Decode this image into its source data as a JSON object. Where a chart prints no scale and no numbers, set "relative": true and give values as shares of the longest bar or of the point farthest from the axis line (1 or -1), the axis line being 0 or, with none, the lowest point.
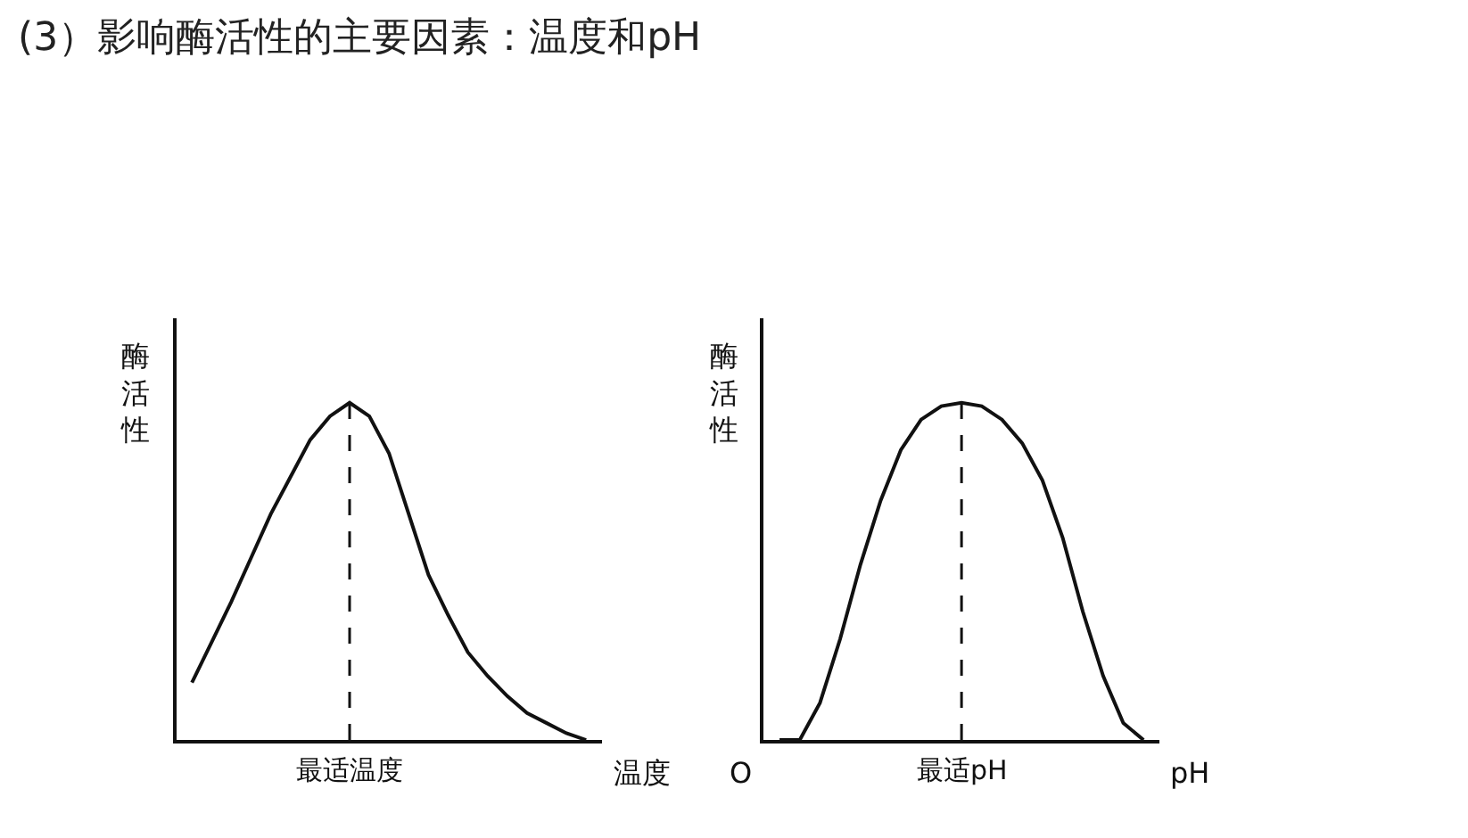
{
  "chart_data": [
    {
      "type": "line",
      "title": "(3）影响酶活性的主要因素：温度和pH",
      "ylabel": "酶活性",
      "xlabel": "温度",
      "relative": true,
      "marker": "none",
      "line_style": "solid",
      "annotations": [
        "最适温度"
      ],
      "categories": [
        null,
        null,
        null,
        null,
        null,
        null,
        null,
        null,
        null,
        null,
        null,
        null,
        null,
        null,
        null,
        null,
        null,
        null,
        null,
        null,
        null
      ],
      "series": [
        {
          "color": "#111111",
          "values": [
            0.17,
            0.29,
            0.41,
            0.54,
            0.67,
            0.78,
            0.89,
            0.96,
            1,
            0.96,
            0.85,
            0.67,
            0.49,
            0.37,
            0.26,
            0.19,
            0.13,
            0.08,
            0.05,
            0.02,
            0
          ]
        }
      ]
    },
    {
      "type": "line",
      "ylabel": "酶活性",
      "xlabel": "pH",
      "relative": true,
      "marker": "none",
      "line_style": "solid",
      "annotations": [
        "最适pH",
        "O"
      ],
      "categories": [
        null,
        null,
        null,
        null,
        null,
        null,
        null,
        null,
        null,
        null,
        null,
        null,
        null,
        null,
        null,
        null,
        null,
        null,
        null
      ],
      "series": [
        {
          "color": "#111111",
          "values": [
            0,
            0,
            0.11,
            0.3,
            0.52,
            0.71,
            0.86,
            0.95,
            0.99,
            1,
            0.99,
            0.95,
            0.88,
            0.77,
            0.6,
            0.38,
            0.19,
            0.05,
            0
          ]
        }
      ]
    }
  ]
}
